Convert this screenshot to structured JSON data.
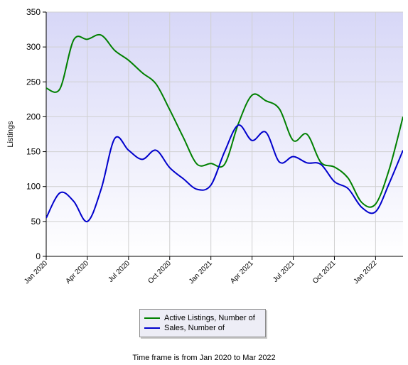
{
  "chart_data": {
    "type": "line",
    "title": "",
    "xlabel": "",
    "ylabel": "Listings",
    "ylim": [
      0,
      350
    ],
    "yticks": [
      0,
      50,
      100,
      150,
      200,
      250,
      300,
      350
    ],
    "xlim": [
      "Jan 2020",
      "Mar 2022"
    ],
    "xticks": [
      "Jan 2020",
      "Apr 2020",
      "Jul 2020",
      "Oct 2020",
      "Jan 2021",
      "Apr 2021",
      "Jul 2021",
      "Oct 2021",
      "Jan 2022"
    ],
    "x": [
      "Jan 2020",
      "Feb 2020",
      "Mar 2020",
      "Apr 2020",
      "May 2020",
      "Jun 2020",
      "Jul 2020",
      "Aug 2020",
      "Sep 2020",
      "Oct 2020",
      "Nov 2020",
      "Dec 2020",
      "Jan 2021",
      "Feb 2021",
      "Mar 2021",
      "Apr 2021",
      "May 2021",
      "Jun 2021",
      "Jul 2021",
      "Aug 2021",
      "Sep 2021",
      "Oct 2021",
      "Nov 2021",
      "Dec 2021",
      "Jan 2022",
      "Feb 2022",
      "Mar 2022"
    ],
    "series": [
      {
        "name": "Active Listings, Number of",
        "color": "#008000",
        "values": [
          241,
          240,
          310,
          311,
          317,
          295,
          281,
          263,
          247,
          210,
          170,
          132,
          133,
          132,
          190,
          231,
          223,
          211,
          166,
          175,
          135,
          128,
          112,
          77,
          75,
          125,
          200
        ]
      },
      {
        "name": "Sales, Number of",
        "color": "#0000cc",
        "values": [
          55,
          91,
          79,
          50,
          96,
          169,
          152,
          139,
          152,
          127,
          111,
          96,
          102,
          150,
          188,
          166,
          178,
          135,
          143,
          134,
          132,
          107,
          97,
          70,
          64,
          105,
          152
        ]
      }
    ],
    "grid": true,
    "legend_position": "bottom"
  },
  "footer_text": "Time frame is from Jan 2020 to Mar 2022"
}
